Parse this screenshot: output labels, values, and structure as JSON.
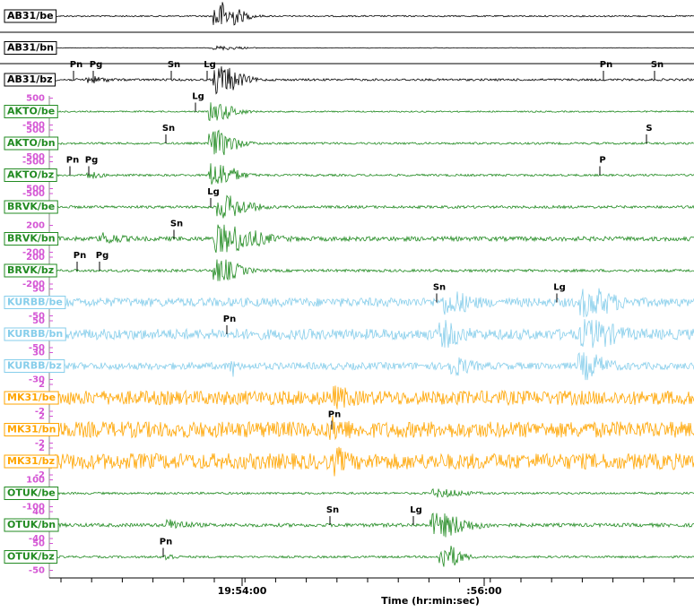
{
  "traces": [
    {
      "label": "AB31/be",
      "scale": [],
      "picks": []
    },
    {
      "label": "AB31/bn",
      "scale": [],
      "picks": []
    },
    {
      "label": "AB31/bz",
      "scale": [],
      "picks": [
        "Pn",
        "Pg",
        "Sn",
        "Lg",
        "Pn",
        "Sn"
      ]
    },
    {
      "label": "AKTO/be",
      "scale": [
        "500",
        "-500"
      ],
      "picks": [
        "Lg"
      ]
    },
    {
      "label": "AKTO/bn",
      "scale": [
        "500",
        "-500"
      ],
      "picks": [
        "Sn",
        "S"
      ]
    },
    {
      "label": "AKTO/bz",
      "scale": [
        "-500",
        "500"
      ],
      "picks": [
        "Pn",
        "Pg",
        "P"
      ]
    },
    {
      "label": "BRVK/be",
      "scale": [
        "-500"
      ],
      "picks": [
        "Lg"
      ]
    },
    {
      "label": "BRVK/bn",
      "scale": [
        "200",
        "-200"
      ],
      "picks": [
        "Sn"
      ]
    },
    {
      "label": "BRVK/bz",
      "scale": [
        "200",
        "-200"
      ],
      "picks": [
        "Pn",
        "Pg"
      ]
    },
    {
      "label": "KURBB/be",
      "scale": [
        "50",
        "-50"
      ],
      "picks": [
        "Sn",
        "Lg"
      ]
    },
    {
      "label": "KURBB/bn",
      "scale": [
        "50",
        "-50"
      ],
      "picks": [
        "Pn"
      ]
    },
    {
      "label": "KURBB/bz",
      "scale": [
        "30",
        "-30"
      ],
      "picks": []
    },
    {
      "label": "MK31/be",
      "scale": [
        "2",
        "-2"
      ],
      "picks": []
    },
    {
      "label": "MK31/bn",
      "scale": [
        "2",
        "-2"
      ],
      "picks": [
        "Pn"
      ]
    },
    {
      "label": "MK31/bz",
      "scale": [
        "2",
        "-2"
      ],
      "picks": []
    },
    {
      "label": "OTUK/be",
      "scale": [
        "100",
        "-100"
      ],
      "picks": []
    },
    {
      "label": "OTUK/bn",
      "scale": [
        "40",
        "-40"
      ],
      "picks": [
        "Sn",
        "Lg"
      ]
    },
    {
      "label": "OTUK/bz",
      "scale": [
        "50",
        "-50"
      ],
      "picks": [
        "Pn"
      ]
    }
  ],
  "axis": {
    "ticks": [
      "19:54:00",
      ":56:00"
    ],
    "label": "Time (hr:min:sec)"
  }
}
